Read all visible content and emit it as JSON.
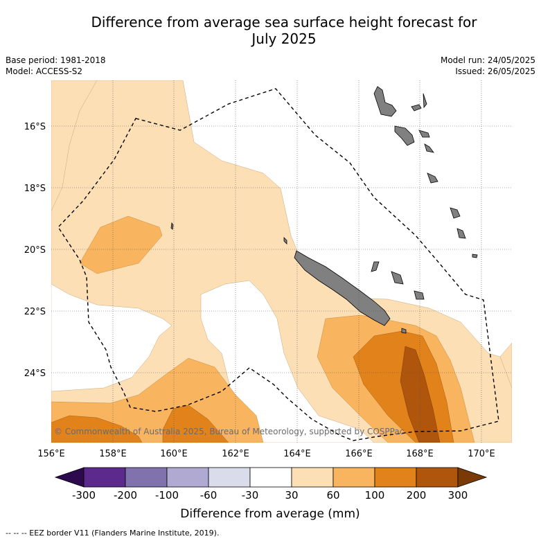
{
  "title_line1": "Difference from average sea surface height forecast for",
  "title_line2": "July 2025",
  "base_period": "Base period: 1981-2018",
  "model": "Model: ACCESS-S2",
  "model_run": "Model run: 24/05/2025",
  "issued": "Issued: 26/05/2025",
  "copyright": "© Commonwealth of Australia 2025, Bureau of Meteorology, supported by COSPPac",
  "footer": "-- -- -- EEZ border V11 (Flanders Marine Institute, 2019).",
  "map": {
    "lat_labels": [
      "16°S",
      "18°S",
      "20°S",
      "22°S",
      "24°S"
    ],
    "lon_labels": [
      "156°E",
      "158°E",
      "160°E",
      "162°E",
      "164°E",
      "166°E",
      "168°E",
      "170°E"
    ]
  },
  "colorbar": {
    "title": "Difference from average (mm)",
    "ticks": [
      "-300",
      "-200",
      "-100",
      "-60",
      "-30",
      "30",
      "60",
      "100",
      "200",
      "300"
    ],
    "colors": {
      "below_-300": "#2d0a4e",
      "-300_-200": "#5b2a8c",
      "-200_-100": "#8073ad",
      "-100_-60": "#b0a9d1",
      "-60_-30": "#dadbeb",
      "-30_30": "#ffffff",
      "30_60": "#fddfb5",
      "60_100": "#f9b45f",
      "100_200": "#e1821a",
      "200_300": "#b0560c",
      "above_300": "#7a3a05"
    }
  },
  "colors": {
    "land": "#808080",
    "grid": "#555555",
    "eez": "#000000"
  }
}
